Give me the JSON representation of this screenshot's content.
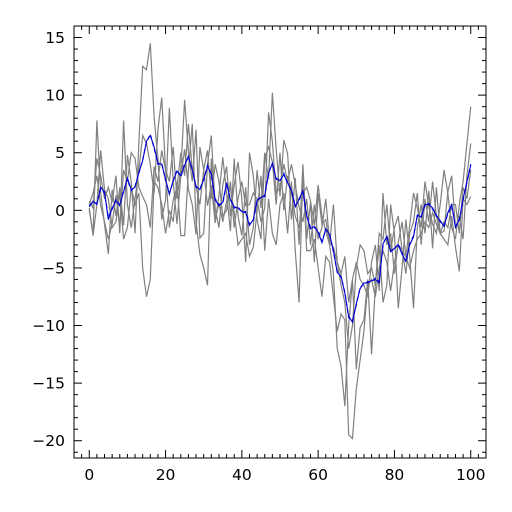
{
  "chart_data": {
    "type": "line",
    "title": "",
    "xlabel": "",
    "ylabel": "",
    "xlim": [
      -4,
      104
    ],
    "ylim": [
      -21.5,
      16
    ],
    "xticks": [
      0,
      20,
      40,
      60,
      80,
      100
    ],
    "yticks": [
      15,
      10,
      5,
      0,
      -5,
      -10,
      -15,
      -20
    ],
    "xtick_labels": [
      "0",
      "20",
      "40",
      "60",
      "80",
      "100"
    ],
    "ytick_labels": [
      "15",
      "10",
      "5",
      "0",
      "−5",
      "−10",
      "−15",
      "−20"
    ],
    "grid": false,
    "legend": "none",
    "mean": [
      0.3,
      0.8,
      0.5,
      2.0,
      1.6,
      -0.8,
      0.2,
      0.8,
      0.5,
      1.6,
      2.8,
      1.8,
      2.0,
      3.3,
      4.3,
      6.0,
      6.5,
      5.5,
      4.1,
      4.0,
      2.7,
      1.4,
      2.6,
      3.4,
      3.0,
      3.9,
      4.7,
      3.5,
      2.1,
      1.8,
      2.7,
      3.8,
      3.2,
      0.9,
      0.4,
      0.7,
      2.4,
      0.9,
      0.3,
      0.2,
      -0.1,
      -0.2,
      -1.3,
      -0.8,
      0.9,
      1.1,
      1.3,
      3.2,
      4.1,
      2.7,
      2.6,
      3.1,
      2.4,
      1.7,
      0.3,
      1.0,
      1.7,
      -0.5,
      -1.6,
      -1.4,
      -1.9,
      -2.8,
      -1.6,
      -2.1,
      -3.5,
      -5.4,
      -5.7,
      -7.2,
      -9.2,
      -9.7,
      -8.1,
      -6.8,
      -6.3,
      -6.3,
      -6.1,
      -6.0,
      -6.3,
      -2.9,
      -2.3,
      -3.6,
      -3.3,
      -3.0,
      -3.8,
      -4.4,
      -3.0,
      -2.3,
      -0.4,
      -0.6,
      0.5,
      0.5,
      0.2,
      -0.5,
      -0.9,
      -1.4,
      -0.2,
      0.5,
      -1.5,
      -0.8,
      1.0,
      2.5,
      3.9
    ],
    "mean_alt": [
      0.4,
      0.7,
      0.6,
      1.9,
      1.5,
      -0.6,
      0.1,
      0.9,
      0.4,
      1.7,
      2.7,
      1.7,
      2.1,
      3.2,
      4.4,
      5.9,
      6.6,
      5.4,
      4.0,
      4.1,
      2.6,
      1.5,
      2.5,
      3.5,
      2.9,
      4.0,
      4.6,
      3.6,
      2.0,
      1.9,
      2.6,
      3.9,
      3.1,
      1.0,
      0.5,
      0.6,
      2.3,
      1.0,
      0.2,
      0.3,
      -0.2,
      -0.1,
      -1.2,
      -0.9,
      0.8,
      1.2,
      1.2,
      3.3,
      4.0,
      2.8,
      2.5,
      3.2,
      2.3,
      1.8,
      0.4,
      0.9,
      1.6,
      -0.4,
      -1.5,
      -1.5,
      -1.8,
      -2.7,
      -1.7,
      -2.0,
      -3.6,
      -5.3,
      -5.8,
      -7.1,
      -9.3,
      -9.6,
      -8.2,
      -6.7,
      -6.4,
      -6.2,
      -6.2,
      -5.9,
      -6.2,
      -3.0,
      -2.2,
      -3.5,
      -3.4,
      -2.9,
      -3.7,
      -4.5,
      -2.9,
      -2.2,
      -0.5,
      -0.5,
      0.4,
      0.6,
      0.1,
      -0.4,
      -1.0,
      -1.3,
      -0.3,
      0.4,
      -1.4,
      -0.9,
      0.9,
      2.4,
      4.0
    ],
    "traces": [
      [
        0.0,
        -2.0,
        7.8,
        1.5,
        -1.2,
        -3.8,
        1.8,
        -0.5,
        2.0,
        -1.3,
        4.8,
        2.5,
        -2.0,
        5.8,
        12.5,
        12.2,
        14.5,
        8.1,
        4.5,
        -0.8,
        0.9,
        8.9,
        2.5,
        -1.2,
        3.0,
        5.3,
        1.8,
        0.5,
        -2.1,
        5.5,
        3.5,
        0.4,
        2.2,
        -1.1,
        1.3,
        4.6,
        1.5,
        -1.8,
        4.5,
        -0.5,
        -2.2,
        2.0,
        -3.0,
        -1.5,
        3.5,
        0.2,
        5.0,
        2.7,
        10.2,
        5.3,
        1.2,
        6.1,
        4.9,
        -0.8,
        2.8,
        -3.0,
        4.0,
        -2.5,
        0.7,
        -4.5,
        1.5,
        -1.2,
        -0.8,
        -3.0,
        -5.5,
        -12.0,
        -13.5,
        -17.0,
        -10.0,
        -6.0,
        -13.8,
        -10.2,
        -9.5,
        -6.0,
        -12.5,
        -6.5,
        -3.0,
        -8.0,
        -6.5,
        0.5,
        -2.0,
        -8.5,
        -5.0,
        -0.8,
        -4.0,
        -8.5,
        -1.5,
        0.5,
        -2.0,
        1.7,
        -3.3,
        2.0,
        -2.0,
        -1.8,
        1.6,
        3.0,
        -1.5,
        -0.5,
        -2.5,
        3.0,
        5.8
      ],
      [
        0.8,
        0.2,
        4.5,
        3.0,
        1.0,
        2.0,
        0.7,
        3.0,
        -2.0,
        7.8,
        0.5,
        -1.5,
        1.0,
        3.5,
        6.5,
        5.8,
        4.0,
        1.5,
        7.0,
        9.8,
        3.5,
        2.5,
        5.5,
        1.0,
        3.5,
        9.6,
        5.0,
        2.5,
        7.0,
        -2.4,
        -2.0,
        4.0,
        6.5,
        0.2,
        -1.5,
        2.2,
        3.8,
        -0.5,
        2.2,
        4.2,
        1.0,
        -4.5,
        5.0,
        3.0,
        -0.8,
        -2.5,
        4.5,
        5.5,
        4.2,
        0.5,
        5.0,
        0.0,
        3.0,
        1.5,
        -0.5,
        -1.5,
        1.5,
        2.0,
        0.8,
        -1.3,
        2.2,
        -0.5,
        -1.8,
        -3.0,
        0.5,
        -4.5,
        -5.5,
        -4.0,
        -8.0,
        -6.0,
        -4.5,
        -6.0,
        -6.5,
        -7.5,
        -4.5,
        -3.0,
        -7.0,
        1.5,
        -3.0,
        -2.0,
        -5.5,
        -2.8,
        -1.0,
        -4.0,
        -1.3,
        1.5,
        0.2,
        -1.5,
        2.5,
        0.3,
        -1.2,
        -2.0,
        0.5,
        3.5,
        1.5,
        -1.5,
        -2.5,
        0.5,
        2.5,
        5.8,
        9.0
      ],
      [
        0.5,
        1.5,
        3.0,
        0.4,
        -1.0,
        -2.5,
        -1.2,
        1.3,
        -1.5,
        3.5,
        2.5,
        5.0,
        4.5,
        2.0,
        1.2,
        0.5,
        -1.5,
        3.8,
        2.5,
        5.2,
        3.5,
        -1.5,
        0.9,
        2.0,
        5.0,
        3.0,
        7.5,
        3.5,
        2.0,
        0.5,
        3.5,
        5.2,
        1.0,
        4.0,
        2.5,
        -0.5,
        0.0,
        2.5,
        -1.5,
        1.0,
        2.5,
        0.4,
        0.5,
        1.5,
        1.0,
        -1.0,
        0.2,
        8.5,
        6.0,
        1.5,
        2.0,
        4.0,
        2.5,
        4.0,
        2.2,
        0.3,
        -1.0,
        1.0,
        -3.0,
        0.5,
        -2.5,
        -1.5,
        1.0,
        -2.8,
        -3.2,
        -4.5,
        -6.5,
        -8.0,
        -12.0,
        -10.0,
        -5.0,
        -3.0,
        -3.5,
        -5.5,
        -5.0,
        -6.5,
        -2.0,
        -2.5,
        0.5,
        -3.5,
        -1.5,
        -0.5,
        -3.5,
        -5.5,
        -2.0,
        -1.0,
        1.5,
        -3.0,
        1.0,
        -1.0,
        2.5,
        -0.5,
        -2.0,
        -1.0,
        -1.5,
        0.5,
        0.5,
        -2.0,
        2.0,
        1.0,
        3.5
      ],
      [
        0.2,
        -2.2,
        0.5,
        5.2,
        1.8,
        1.0,
        -1.5,
        -1.0,
        1.5,
        -2.5,
        -1.5,
        2.0,
        0.5,
        1.5,
        -5.0,
        -7.5,
        -6.0,
        2.5,
        2.0,
        0.5,
        -2.0,
        0.0,
        -1.0,
        2.5,
        -2.2,
        -2.2,
        3.5,
        7.5,
        -1.0,
        -3.8,
        -5.0,
        -6.5,
        4.5,
        -0.8,
        0.6,
        -1.0,
        0.8,
        2.0,
        -0.2,
        -3.0,
        -2.5,
        -2.0,
        -4.0,
        -3.2,
        0.0,
        3.0,
        -3.5,
        1.0,
        -2.0,
        -3.0,
        0.5,
        1.5,
        -2.0,
        2.5,
        -3.5,
        -8.0,
        3.5,
        -3.5,
        -3.5,
        -2.5,
        -5.0,
        -7.5,
        -4.0,
        -4.5,
        -7.5,
        -10.5,
        -9.0,
        -9.5,
        -19.5,
        -19.8,
        -15.5,
        -13.0,
        -10.5,
        -6.5,
        -6.0,
        -7.5,
        -5.0,
        -3.5,
        -4.5,
        -7.0,
        -4.5,
        -3.0,
        -3.5,
        -4.0,
        -5.0,
        -3.5,
        -2.5,
        -2.0,
        -1.0,
        -1.5,
        -0.2,
        -1.2,
        -2.0,
        -2.5,
        -3.0,
        -0.5,
        -3.2,
        -5.3,
        1.0,
        0.5,
        1.2
      ]
    ],
    "colors": {
      "mean": "#0000cc",
      "mean_alt": "#0000ee",
      "traces": "#808080",
      "axes": "#000000"
    }
  }
}
